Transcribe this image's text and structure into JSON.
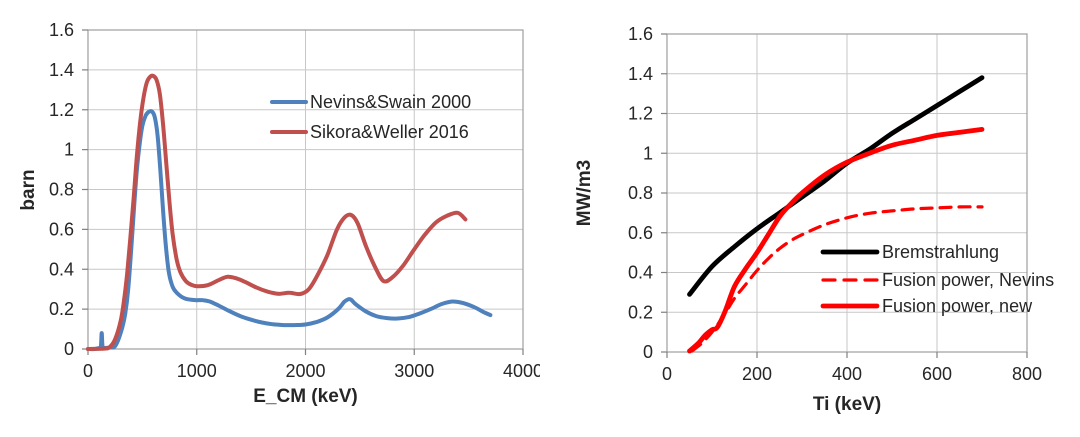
{
  "page": {
    "background": "#ffffff",
    "description": "Two line charts: fusion reaction cross section vs center-of-mass energy, and fusion power density vs ion temperature"
  },
  "colors": {
    "gridline": "#c7c7c7",
    "plot_border": "#9e9e9e",
    "tick": "#808080",
    "text": "#262626",
    "excel_blue": "#4f81bd",
    "excel_red": "#c0504d",
    "pure_red": "#ff0000",
    "black": "#000000"
  },
  "chart_data": [
    {
      "type": "line",
      "title": "",
      "xlabel": "E_CM (keV)",
      "ylabel": "barn",
      "xlim": [
        0,
        4000
      ],
      "ylim": [
        0,
        1.6
      ],
      "xticks": {
        "values": [
          0,
          1000,
          2000,
          3000,
          4000
        ],
        "labels": [
          "0",
          "1000",
          "2000",
          "3000",
          "4000"
        ]
      },
      "yticks": {
        "values": [
          0,
          0.2,
          0.4,
          0.6,
          0.8,
          1.0,
          1.2,
          1.4,
          1.6
        ],
        "labels": [
          "0",
          "0.2",
          "0.4",
          "0.6",
          "0.8",
          "1",
          "1.2",
          "1.4",
          "1.6"
        ]
      },
      "grid": true,
      "legend": {
        "position": "inside upper middle",
        "border": false
      },
      "series": [
        {
          "name": "Nevins&Swain 2000",
          "color": "#4f81bd",
          "dash": "solid",
          "x": [
            0,
            60,
            100,
            118,
            126,
            134,
            150,
            200,
            250,
            300,
            340,
            370,
            400,
            425,
            450,
            475,
            500,
            530,
            560,
            590,
            615,
            640,
            665,
            690,
            715,
            745,
            780,
            820,
            860,
            900,
            950,
            1000,
            1060,
            1120,
            1200,
            1300,
            1400,
            1500,
            1600,
            1700,
            1800,
            1900,
            2000,
            2100,
            2200,
            2300,
            2360,
            2410,
            2460,
            2550,
            2650,
            2750,
            2850,
            2950,
            3050,
            3150,
            3250,
            3350,
            3450,
            3550,
            3650,
            3700
          ],
          "y": [
            0,
            0,
            0.005,
            0.01,
            0.08,
            0.01,
            0.005,
            0.008,
            0.015,
            0.08,
            0.17,
            0.3,
            0.52,
            0.72,
            0.9,
            1.03,
            1.12,
            1.17,
            1.19,
            1.19,
            1.16,
            1.07,
            0.9,
            0.7,
            0.52,
            0.38,
            0.31,
            0.28,
            0.262,
            0.252,
            0.247,
            0.245,
            0.245,
            0.238,
            0.218,
            0.19,
            0.165,
            0.147,
            0.133,
            0.124,
            0.12,
            0.12,
            0.123,
            0.135,
            0.158,
            0.2,
            0.238,
            0.25,
            0.225,
            0.19,
            0.165,
            0.155,
            0.153,
            0.16,
            0.178,
            0.2,
            0.225,
            0.238,
            0.23,
            0.21,
            0.182,
            0.17
          ]
        },
        {
          "name": "Sikora&Weller 2016",
          "color": "#c0504d",
          "dash": "solid",
          "x": [
            0,
            150,
            200,
            250,
            300,
            330,
            360,
            390,
            420,
            450,
            480,
            510,
            540,
            570,
            600,
            630,
            660,
            690,
            720,
            750,
            780,
            815,
            850,
            900,
            950,
            1000,
            1100,
            1200,
            1280,
            1360,
            1450,
            1550,
            1650,
            1750,
            1850,
            1950,
            2030,
            2110,
            2200,
            2290,
            2360,
            2420,
            2480,
            2560,
            2650,
            2720,
            2800,
            2900,
            3000,
            3100,
            3200,
            3300,
            3400,
            3470
          ],
          "y": [
            0,
            0.002,
            0.01,
            0.05,
            0.14,
            0.24,
            0.38,
            0.56,
            0.76,
            0.97,
            1.14,
            1.26,
            1.335,
            1.365,
            1.37,
            1.35,
            1.28,
            1.13,
            0.93,
            0.73,
            0.57,
            0.45,
            0.385,
            0.34,
            0.322,
            0.315,
            0.32,
            0.345,
            0.362,
            0.355,
            0.335,
            0.308,
            0.288,
            0.277,
            0.282,
            0.276,
            0.3,
            0.37,
            0.47,
            0.6,
            0.66,
            0.672,
            0.63,
            0.51,
            0.4,
            0.34,
            0.36,
            0.42,
            0.5,
            0.575,
            0.635,
            0.668,
            0.683,
            0.65
          ]
        }
      ]
    },
    {
      "type": "line",
      "title": "",
      "xlabel": "Ti (keV)",
      "ylabel": "MW/m3",
      "xlim": [
        0,
        800
      ],
      "ylim": [
        0,
        1.6
      ],
      "xticks": {
        "values": [
          0,
          200,
          400,
          600,
          800
        ],
        "labels": [
          "0",
          "200",
          "400",
          "600",
          "800"
        ]
      },
      "yticks": {
        "values": [
          0,
          0.2,
          0.4,
          0.6,
          0.8,
          1.0,
          1.2,
          1.4,
          1.6
        ],
        "labels": [
          "0",
          "0.2",
          "0.4",
          "0.6",
          "0.8",
          "1",
          "1.2",
          "1.4",
          "1.6"
        ]
      },
      "grid": true,
      "legend": {
        "position": "inside lower right",
        "border": false
      },
      "series": [
        {
          "name": "Bremstrahlung",
          "color": "#000000",
          "dash": "solid",
          "x": [
            50,
            100,
            150,
            200,
            250,
            300,
            350,
            400,
            450,
            500,
            550,
            600,
            650,
            700
          ],
          "y": [
            0.29,
            0.43,
            0.53,
            0.62,
            0.7,
            0.78,
            0.86,
            0.95,
            1.02,
            1.1,
            1.17,
            1.24,
            1.31,
            1.38
          ]
        },
        {
          "name": "Fusion power, Nevins",
          "color": "#ff0000",
          "dash": "dashed",
          "x": [
            55,
            75,
            100,
            125,
            150,
            175,
            200,
            225,
            250,
            275,
            300,
            350,
            400,
            450,
            500,
            550,
            600,
            650,
            700
          ],
          "y": [
            0.005,
            0.04,
            0.1,
            0.18,
            0.27,
            0.34,
            0.41,
            0.47,
            0.52,
            0.56,
            0.59,
            0.64,
            0.675,
            0.698,
            0.71,
            0.72,
            0.725,
            0.73,
            0.73
          ]
        },
        {
          "name": "Fusion power, new",
          "color": "#ff0000",
          "dash": "solid",
          "x": [
            50,
            70,
            85,
            100,
            112,
            130,
            150,
            175,
            200,
            225,
            250,
            275,
            300,
            350,
            400,
            450,
            500,
            550,
            600,
            650,
            700
          ],
          "y": [
            0.005,
            0.045,
            0.085,
            0.112,
            0.125,
            0.21,
            0.33,
            0.42,
            0.5,
            0.59,
            0.68,
            0.745,
            0.8,
            0.89,
            0.955,
            1.0,
            1.04,
            1.065,
            1.09,
            1.105,
            1.12
          ]
        }
      ]
    }
  ]
}
